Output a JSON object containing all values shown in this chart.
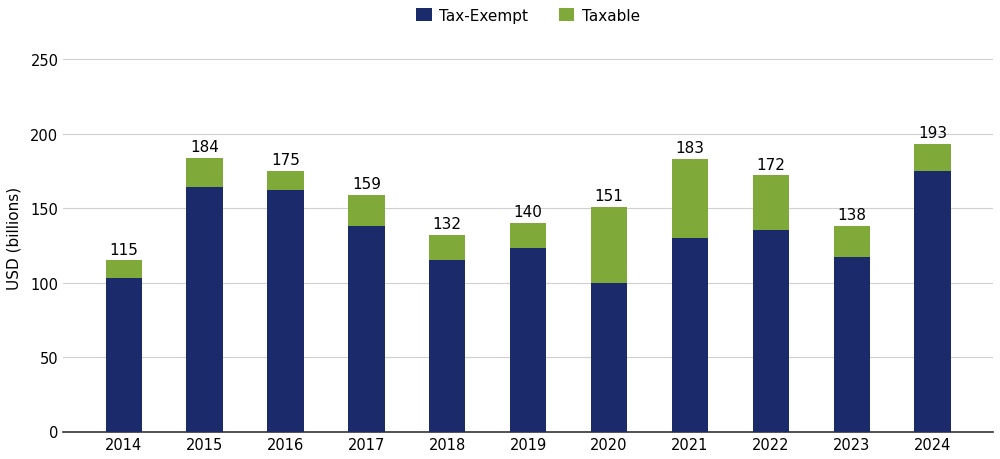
{
  "years": [
    "2014",
    "2015",
    "2016",
    "2017",
    "2018",
    "2019",
    "2020",
    "2021",
    "2022",
    "2023",
    "2024"
  ],
  "totals": [
    115,
    184,
    175,
    159,
    132,
    140,
    151,
    183,
    172,
    138,
    193
  ],
  "tax_exempt": [
    103,
    164,
    162,
    138,
    115,
    123,
    100,
    130,
    135,
    117,
    175
  ],
  "tax_exempt_color": "#1b2a6b",
  "taxable_color": "#7faa3a",
  "background_color": "#ffffff",
  "grid_color": "#d0d0d0",
  "ylabel": "USD (billions)",
  "ylim": [
    0,
    260
  ],
  "yticks": [
    0,
    50,
    100,
    150,
    200,
    250
  ],
  "legend_labels": [
    "Tax-Exempt",
    "Taxable"
  ],
  "bar_width": 0.45,
  "total_label_fontsize": 11,
  "axis_label_fontsize": 11,
  "tick_fontsize": 10.5,
  "legend_fontsize": 11
}
